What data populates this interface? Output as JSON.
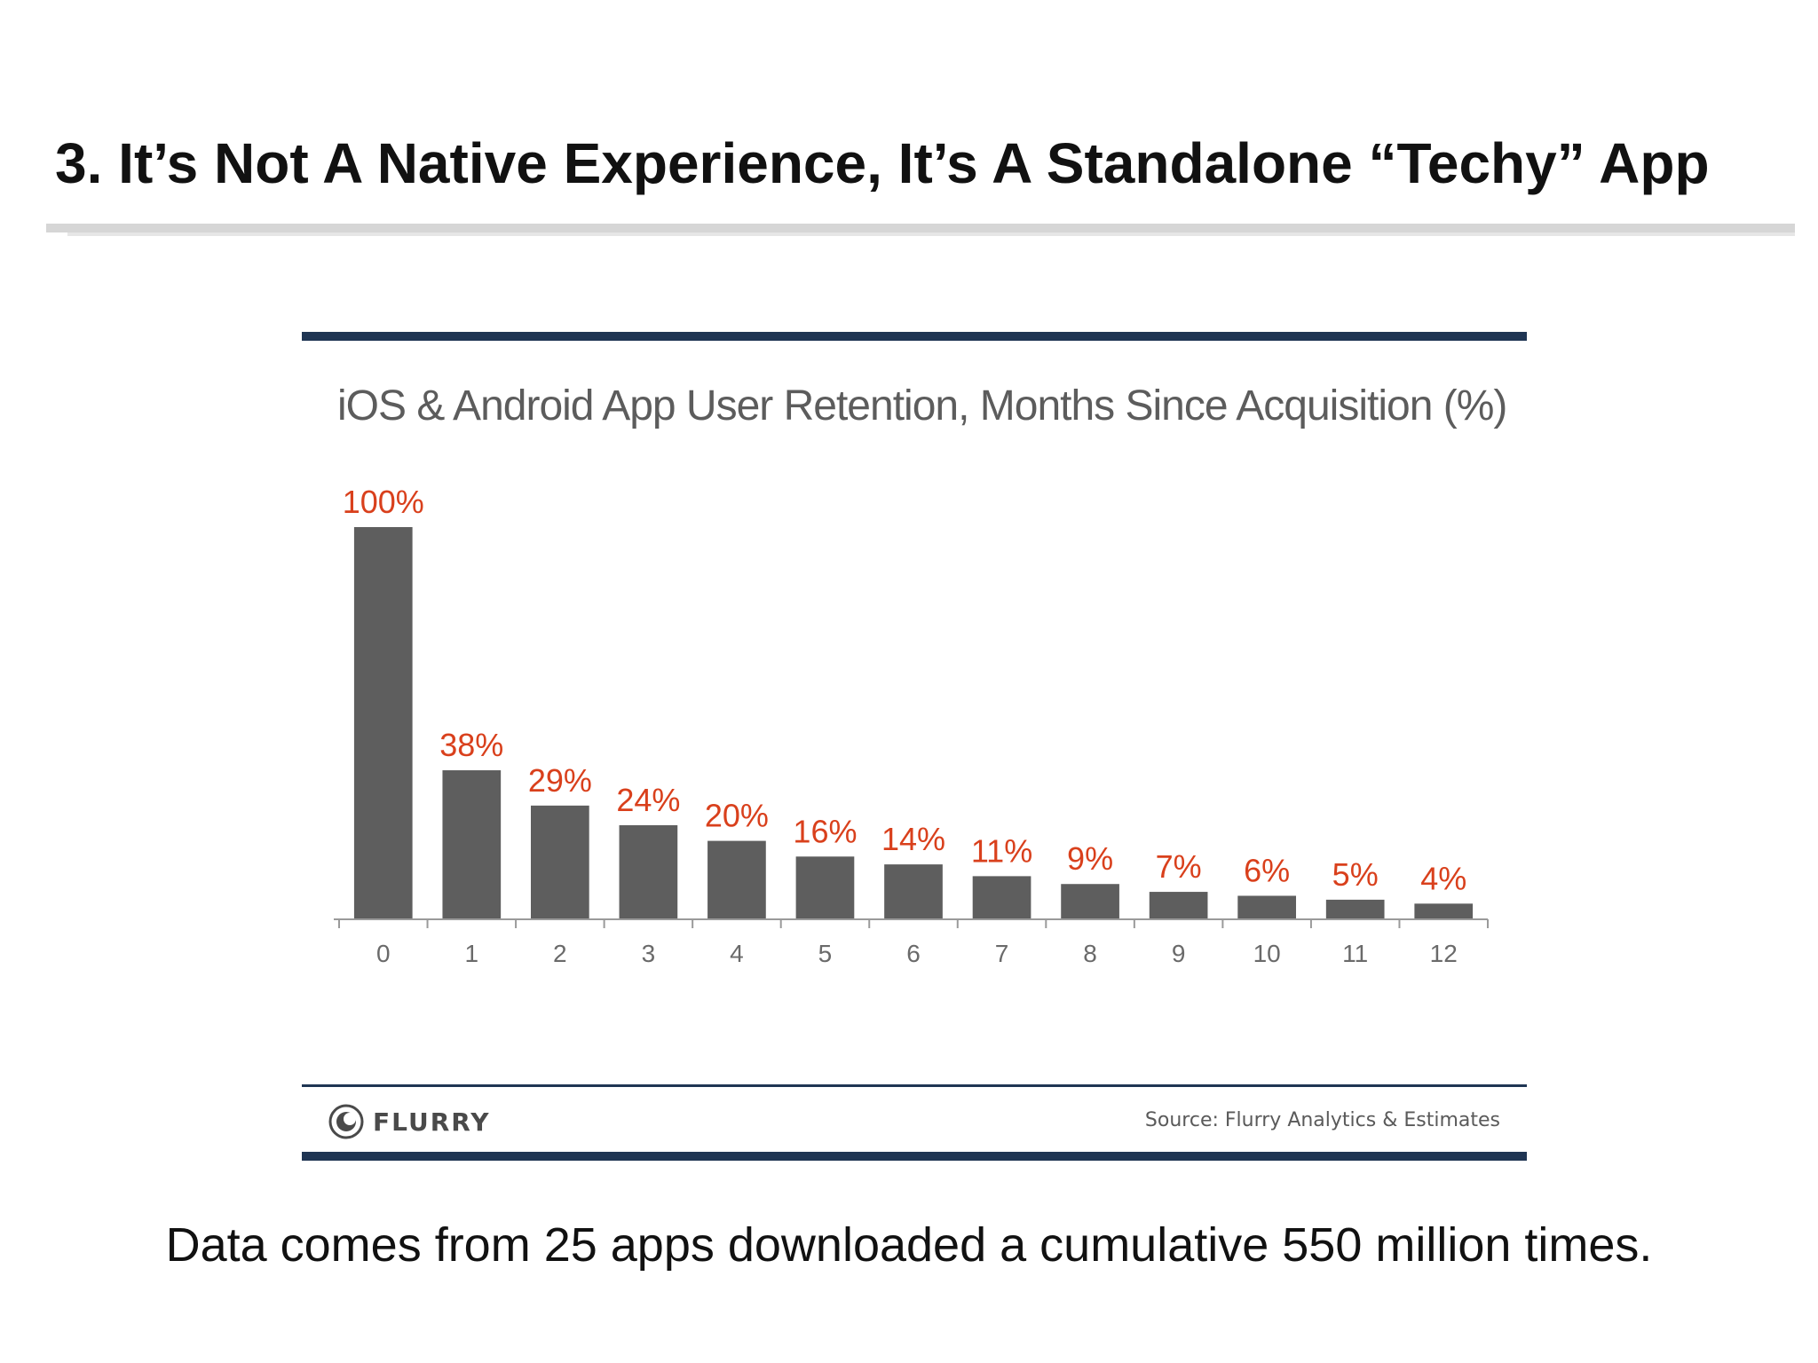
{
  "slide": {
    "title": "3. It’s Not A Native Experience, It’s A Standalone “Techy” App",
    "caption": "Data comes from 25 apps downloaded a cumulative 550 million times."
  },
  "chart_frame": {
    "source": "Source: Flurry Analytics & Estimates",
    "brand": "FLURRY",
    "brand_icon": "flurry-logo-icon",
    "accent_color": "#1f3553"
  },
  "chart_data": {
    "type": "bar",
    "title": "iOS & Android App User Retention, Months Since Acquisition (%)",
    "xlabel": "",
    "ylabel": "",
    "categories": [
      "0",
      "1",
      "2",
      "3",
      "4",
      "5",
      "6",
      "7",
      "8",
      "9",
      "10",
      "11",
      "12"
    ],
    "values": [
      100,
      38,
      29,
      24,
      20,
      16,
      14,
      11,
      9,
      7,
      6,
      5,
      4
    ],
    "data_labels": [
      "100%",
      "38%",
      "29%",
      "24%",
      "20%",
      "16%",
      "14%",
      "11%",
      "9%",
      "7%",
      "6%",
      "5%",
      "4%"
    ],
    "ylim": [
      0,
      100
    ],
    "grid": false,
    "bar_color": "#5e5e5e",
    "label_color": "#d9401c"
  }
}
